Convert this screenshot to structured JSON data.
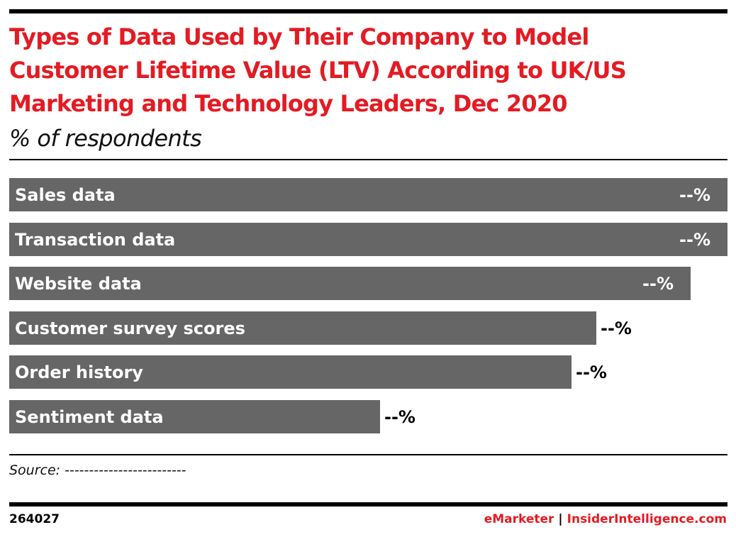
{
  "header": {
    "title_lines": [
      "Types of Data Used by Their Company to Model",
      "Customer Lifetime Value (LTV) According to UK/US",
      "Marketing and Technology Leaders, Dec 2020"
    ],
    "subtitle": "% of respondents"
  },
  "chart_data": {
    "type": "bar",
    "orientation": "horizontal",
    "title": "Types of Data Used by Their Company to Model Customer Lifetime Value (LTV) According to UK/US Marketing and Technology Leaders, Dec 2020",
    "subtitle": "% of respondents",
    "categories": [
      "Sales data",
      "Transaction data",
      "Website data",
      "Customer survey  scores",
      "Order history",
      "Sentiment data"
    ],
    "values": [
      100,
      100,
      94.9,
      81.7,
      78.3,
      51.6
    ],
    "value_labels": [
      "--%",
      "--%",
      "--%",
      "--%",
      "--%",
      "--%"
    ],
    "xlim": [
      0,
      100
    ],
    "grid": false,
    "legend": "none",
    "colors": {
      "bar": "#666666",
      "label_inside": "#ffffff",
      "value_text": "#000000"
    }
  },
  "footer": {
    "source": "Source: -------------------------",
    "chart_id": "264027",
    "brand_emarketer": "eMarketer",
    "brand_separator": "|",
    "brand_insider": "InsiderIntelligence.com"
  },
  "colors": {
    "accent": "#e31b23",
    "rule": "#000000"
  }
}
